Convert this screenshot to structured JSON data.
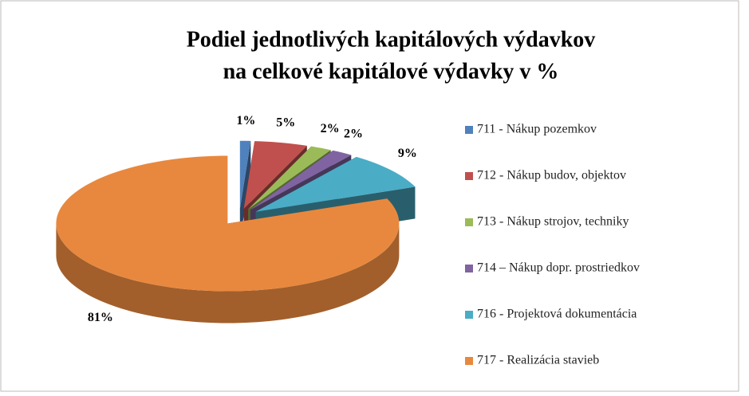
{
  "chart_data": {
    "type": "pie",
    "title": "Podiel jednotlivých kapitálových výdavkov",
    "subtitle": "na celkové kapitálové výdavky v %",
    "categories": [
      "711 - Nákup pozemkov",
      "712 - Nákup budov, objektov",
      "713 - Nákup strojov, techniky",
      "714 – Nákup dopr. prostriedkov",
      "716 - Projektová dokumentácia",
      "717 - Realizácia stavieb"
    ],
    "values": [
      1,
      5,
      2,
      2,
      9,
      81
    ],
    "value_labels": [
      "1%",
      "5%",
      "2%",
      "2%",
      "9%",
      "81%"
    ],
    "colors": [
      "#4f81bd",
      "#c0504d",
      "#9bbb59",
      "#8064a2",
      "#4bacc6",
      "#e8883e"
    ],
    "legend": "right"
  }
}
